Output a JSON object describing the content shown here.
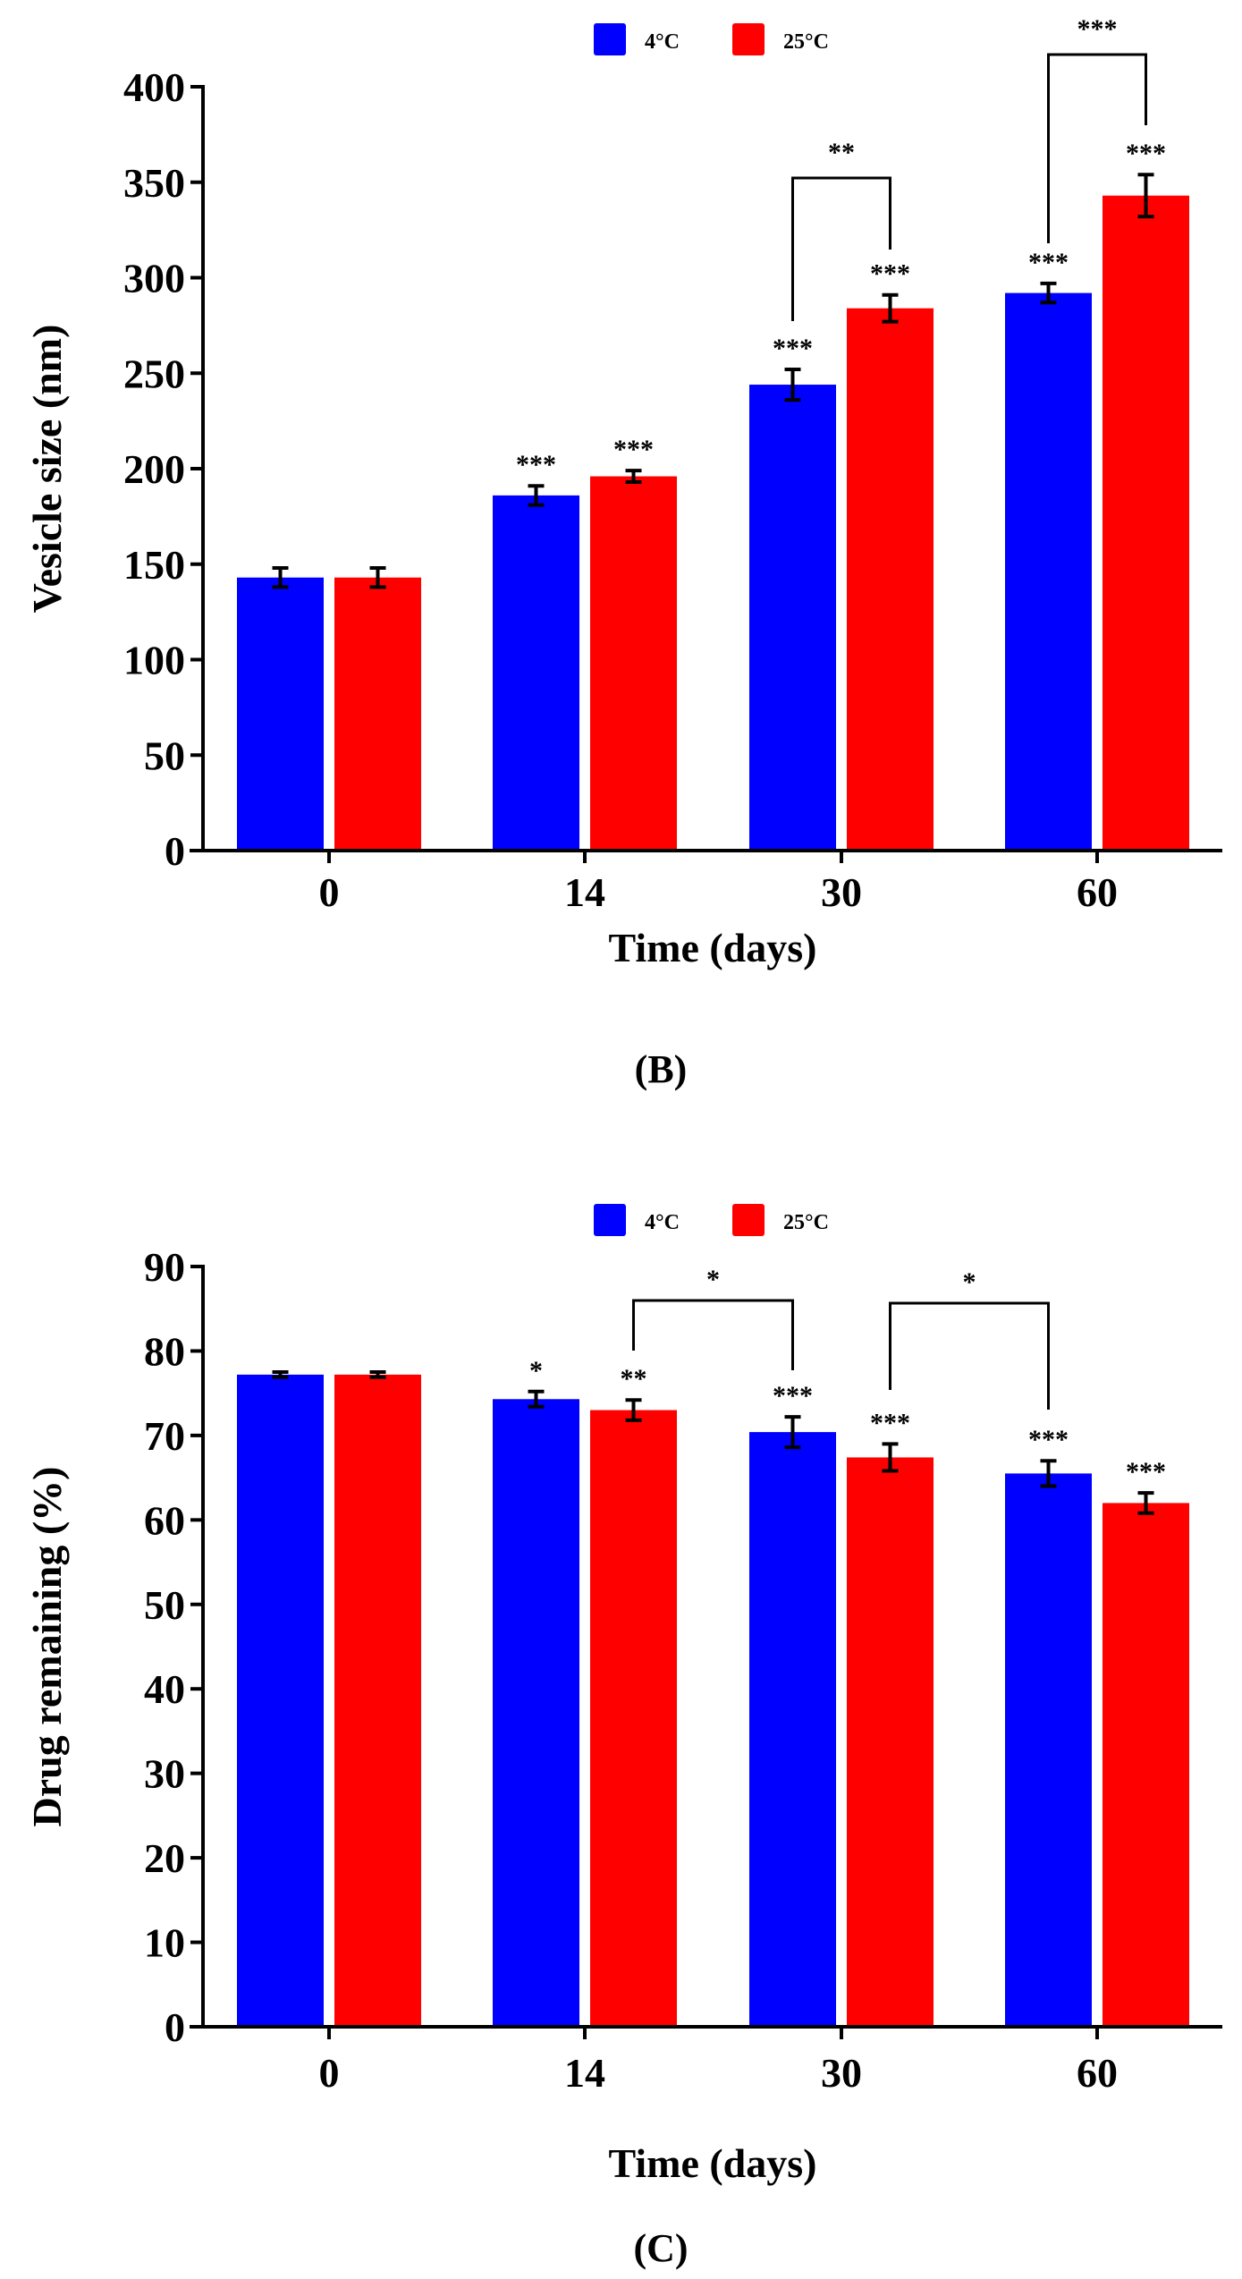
{
  "colors": {
    "series_4C": "#0000ff",
    "series_25C": "#ff0000",
    "axis": "#000000"
  },
  "chart_data": [
    {
      "type": "bar",
      "panel_label": "(B)",
      "title": "",
      "xlabel": "Time (days)",
      "ylabel": "Vesicle size (nm)",
      "categories": [
        "0",
        "14",
        "30",
        "60"
      ],
      "ylim": [
        0,
        400
      ],
      "yticks": [
        0,
        50,
        100,
        150,
        200,
        250,
        300,
        350,
        400
      ],
      "grid": false,
      "legend": {
        "placement": "top-center",
        "entries": [
          "4°C",
          "25°C"
        ]
      },
      "series": [
        {
          "name": "4°C",
          "values": [
            143,
            186,
            244,
            292
          ],
          "errors": [
            5,
            5,
            8,
            5
          ],
          "significance": [
            "",
            "***",
            "***",
            "***"
          ]
        },
        {
          "name": "25°C",
          "values": [
            143,
            196,
            284,
            343
          ],
          "errors": [
            5,
            3,
            7,
            11
          ],
          "significance": [
            "",
            "***",
            "***",
            "***"
          ]
        }
      ],
      "comparisons": [
        {
          "from": {
            "series": 0,
            "category": 2
          },
          "to": {
            "series": 1,
            "category": 2
          },
          "label": "**"
        },
        {
          "from": {
            "series": 0,
            "category": 3
          },
          "to": {
            "series": 1,
            "category": 3
          },
          "label": "***"
        }
      ]
    },
    {
      "type": "bar",
      "panel_label": "(C)",
      "title": "",
      "xlabel": "Time (days)",
      "ylabel": "Drug remaining (%)",
      "categories": [
        "0",
        "14",
        "30",
        "60"
      ],
      "ylim": [
        0,
        90
      ],
      "yticks": [
        0,
        10,
        20,
        30,
        40,
        50,
        60,
        70,
        80,
        90
      ],
      "grid": false,
      "legend": {
        "placement": "top-center",
        "entries": [
          "4°C",
          "25°C"
        ]
      },
      "series": [
        {
          "name": "4°C",
          "values": [
            77.2,
            74.3,
            70.4,
            65.5
          ],
          "errors": [
            0.3,
            0.9,
            1.8,
            1.5
          ],
          "significance": [
            "",
            "*",
            "***",
            "***"
          ]
        },
        {
          "name": "25°C",
          "values": [
            77.2,
            73.0,
            67.4,
            62.0
          ],
          "errors": [
            0.3,
            1.2,
            1.6,
            1.2
          ],
          "significance": [
            "",
            "**",
            "***",
            "***"
          ]
        }
      ],
      "comparisons": [
        {
          "from": {
            "series": 1,
            "category": 1
          },
          "to": {
            "series": 0,
            "category": 2
          },
          "label": "*"
        },
        {
          "from": {
            "series": 1,
            "category": 2
          },
          "to": {
            "series": 0,
            "category": 3
          },
          "label": "*"
        }
      ]
    }
  ]
}
